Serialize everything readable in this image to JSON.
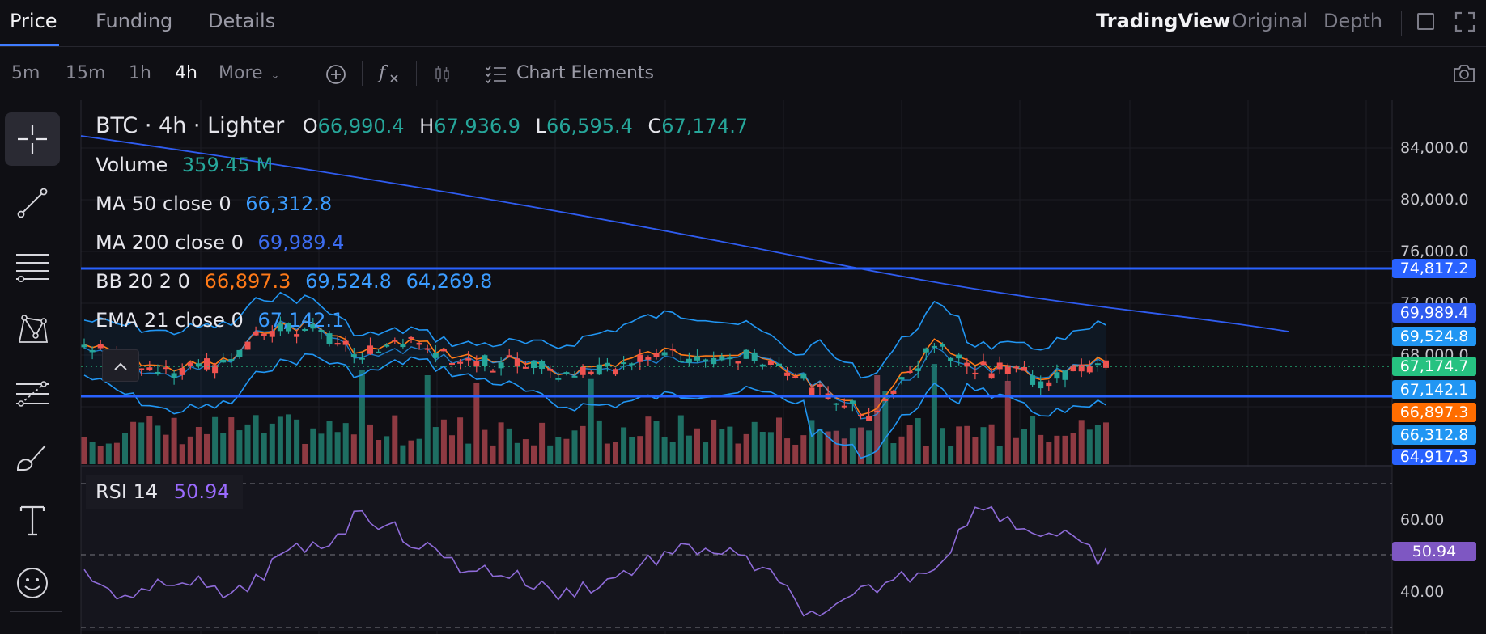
{
  "tabs": [
    {
      "label": "Price",
      "active": true
    },
    {
      "label": "Funding",
      "active": false
    },
    {
      "label": "Details",
      "active": false
    }
  ],
  "view_tabs": [
    {
      "label": "TradingView",
      "active": true
    },
    {
      "label": "Original",
      "active": false
    },
    {
      "label": "Depth",
      "active": false
    }
  ],
  "toolbar": {
    "timeframes": [
      {
        "label": "5m",
        "active": false
      },
      {
        "label": "15m",
        "active": false
      },
      {
        "label": "1h",
        "active": false
      },
      {
        "label": "4h",
        "active": true
      },
      {
        "label": "More",
        "active": false
      }
    ],
    "chart_elements_label": "Chart Elements",
    "icons": [
      "add-indicator-icon",
      "function-icon",
      "candle-type-icon",
      "chart-elements-icon",
      "camera-icon"
    ]
  },
  "left_tools": [
    "crosshair-icon",
    "trendline-icon",
    "horizontal-lines-icon",
    "pattern-icon",
    "fib-icon",
    "brush-icon",
    "text-icon",
    "emoji-icon"
  ],
  "legend": {
    "symbol": "BTC · 4h · Lighter",
    "open_label": "O",
    "open": "66,990.4",
    "high_label": "H",
    "high": "67,936.9",
    "low_label": "L",
    "low": "66,595.4",
    "close_label": "C",
    "close": "67,174.7",
    "volume_label": "Volume",
    "volume": "359.45 M",
    "ma50_label": "MA 50 close 0",
    "ma50": "66,312.8",
    "ma200_label": "MA 200 close 0",
    "ma200": "69,989.4",
    "bb_label": "BB 20 2 0",
    "bb_mid": "66,897.3",
    "bb_upper": "69,524.8",
    "bb_lower": "64,269.8",
    "ema_label": "EMA 21 close 0",
    "ema": "67,142.1",
    "rsi_label": "RSI 14",
    "rsi": "50.94"
  },
  "price_axis": [
    "84,000.0",
    "80,000.0",
    "76,000.0",
    "72,000.0",
    "68,000.0"
  ],
  "price_tags": [
    {
      "value": "74,817.2",
      "color": "#2962ff"
    },
    {
      "value": "69,989.4",
      "color": "#2f5cf0"
    },
    {
      "value": "69,524.8",
      "color": "#2196f3"
    },
    {
      "value": "67,174.7",
      "color": "#26c281"
    },
    {
      "value": "67,142.1",
      "color": "#2196f3"
    },
    {
      "value": "66,897.3",
      "color": "#ff6d00"
    },
    {
      "value": "66,312.8",
      "color": "#2196f3"
    },
    {
      "value": "64,917.3",
      "color": "#2962ff"
    }
  ],
  "rsi_axis": [
    "60.00",
    "40.00"
  ],
  "rsi_tag": {
    "value": "50.94",
    "color": "#7e57c2"
  },
  "colors": {
    "up": "#26a69a",
    "down": "#ef5350",
    "ma200": "#2f5cf0",
    "bb": "#2196f3",
    "ema": "#ff7a18",
    "rsi": "#8e6bd8",
    "hline": "#2962ff"
  }
}
